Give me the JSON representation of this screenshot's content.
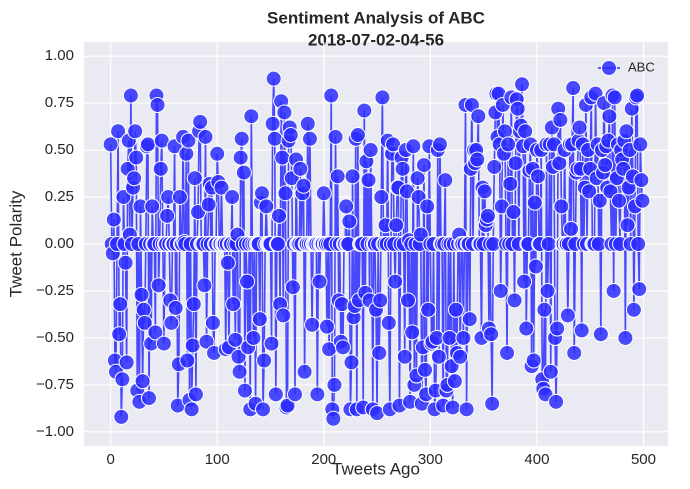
{
  "chart_data": {
    "type": "line",
    "title": "Sentiment Analysis of ABC",
    "subtitle": "2018-07-02-04-56",
    "x_label": "Tweets Ago",
    "y_label": "Tweet Polarity",
    "xlim": [
      -25,
      523
    ],
    "ylim": [
      -1.075,
      1.075
    ],
    "xticks": [
      0,
      100,
      200,
      300,
      400,
      500
    ],
    "yticks": [
      {
        "value": -1,
        "label": "−1.00"
      },
      {
        "value": -0.75,
        "label": "−0.75"
      },
      {
        "value": -0.5,
        "label": "−0.50"
      },
      {
        "value": -0.25,
        "label": "−0.25"
      },
      {
        "value": 0,
        "label": "0.00"
      },
      {
        "value": 0.25,
        "label": "0.25"
      },
      {
        "value": 0.5,
        "label": "0.50"
      },
      {
        "value": 0.75,
        "label": "0.75"
      },
      {
        "value": 1,
        "label": "1.00"
      }
    ],
    "grid": true,
    "legend": "upper right",
    "x": [
      0,
      1,
      2,
      3,
      4,
      5,
      6,
      7,
      8,
      9,
      10,
      11,
      12,
      13,
      14,
      15,
      16,
      17,
      18,
      19,
      20,
      21,
      22,
      23,
      24,
      25,
      26,
      27,
      28,
      29,
      30,
      31,
      32,
      33,
      34,
      35,
      36,
      37,
      38,
      39,
      40,
      41,
      42,
      43,
      44,
      45,
      46,
      47,
      48,
      49,
      50,
      51,
      52,
      53,
      54,
      55,
      56,
      57,
      58,
      59,
      60,
      61,
      62,
      63,
      64,
      65,
      66,
      67,
      68,
      69,
      70,
      71,
      72,
      73,
      74,
      75,
      76,
      77,
      78,
      79,
      80,
      81,
      82,
      83,
      84,
      85,
      86,
      87,
      88,
      89,
      90,
      91,
      92,
      93,
      94,
      95,
      96,
      97,
      98,
      99,
      100,
      101,
      102,
      103,
      104,
      105,
      106,
      107,
      108,
      109,
      110,
      111,
      112,
      113,
      114,
      115,
      116,
      117,
      118,
      119,
      120,
      121,
      122,
      123,
      124,
      125,
      126,
      127,
      128,
      129,
      130,
      131,
      132,
      133,
      134,
      135,
      136,
      137,
      138,
      139,
      140,
      141,
      142,
      143,
      144,
      145,
      146,
      147,
      148,
      149,
      150,
      151,
      152,
      153,
      154,
      155,
      156,
      157,
      158,
      159,
      160,
      161,
      162,
      163,
      164,
      165,
      166,
      167,
      168,
      169,
      170,
      171,
      172,
      173,
      174,
      175,
      176,
      177,
      178,
      179,
      180,
      181,
      182,
      183,
      184,
      185,
      186,
      187,
      188,
      189,
      190,
      191,
      192,
      193,
      194,
      195,
      196,
      197,
      198,
      199,
      200,
      201,
      202,
      203,
      204,
      205,
      206,
      207,
      208,
      209,
      210,
      211,
      212,
      213,
      214,
      215,
      216,
      217,
      218,
      219,
      220,
      221,
      222,
      223,
      224,
      225,
      226,
      227,
      228,
      229,
      230,
      231,
      232,
      233,
      234,
      235,
      236,
      237,
      238,
      239,
      240,
      241,
      242,
      243,
      244,
      245,
      246,
      247,
      248,
      249,
      250,
      251,
      252,
      253,
      254,
      255,
      256,
      257,
      258,
      259,
      260,
      261,
      262,
      263,
      264,
      265,
      266,
      267,
      268,
      269,
      270,
      271,
      272,
      273,
      274,
      275,
      276,
      277,
      278,
      279,
      280,
      281,
      282,
      283,
      284,
      285,
      286,
      287,
      288,
      289,
      290,
      291,
      292,
      293,
      294,
      295,
      296,
      297,
      298,
      299,
      300,
      301,
      302,
      303,
      304,
      305,
      306,
      307,
      308,
      309,
      310,
      311,
      312,
      313,
      314,
      315,
      316,
      317,
      318,
      319,
      320,
      321,
      322,
      323,
      324,
      325,
      326,
      327,
      328,
      329,
      330,
      331,
      332,
      333,
      334,
      335,
      336,
      337,
      338,
      339,
      340,
      341,
      342,
      343,
      344,
      345,
      346,
      347,
      348,
      349,
      350,
      351,
      352,
      353,
      354,
      355,
      356,
      357,
      358,
      359,
      360,
      361,
      362,
      363,
      364,
      365,
      366,
      367,
      368,
      369,
      370,
      371,
      372,
      373,
      374,
      375,
      376,
      377,
      378,
      379,
      380,
      381,
      382,
      383,
      384,
      385,
      386,
      387,
      388,
      389,
      390,
      391,
      392,
      393,
      394,
      395,
      396,
      397,
      398,
      399,
      400,
      401,
      402,
      403,
      404,
      405,
      406,
      407,
      408,
      409,
      410,
      411,
      412,
      413,
      414,
      415,
      416,
      417,
      418,
      419,
      420,
      421,
      422,
      423,
      424,
      425,
      426,
      427,
      428,
      429,
      430,
      431,
      432,
      433,
      434,
      435,
      436,
      437,
      438,
      439,
      440,
      441,
      442,
      443,
      444,
      445,
      446,
      447,
      448,
      449,
      450,
      451,
      452,
      453,
      454,
      455,
      456,
      457,
      458,
      459,
      460,
      461,
      462,
      463,
      464,
      465,
      466,
      467,
      468,
      469,
      470,
      471,
      472,
      473,
      474,
      475,
      476,
      477,
      478,
      479,
      480,
      481,
      482,
      483,
      484,
      485,
      486,
      487,
      488,
      489,
      490,
      491,
      492,
      493,
      494,
      495,
      496,
      497,
      498,
      499
    ],
    "series": [
      {
        "name": "ABC",
        "color": "#2b2bff",
        "values": [
          0.53,
          0,
          -0.05,
          0.13,
          -0.62,
          -0.68,
          0,
          0.6,
          -0.48,
          -0.32,
          -0.92,
          -0.72,
          0.25,
          0,
          -0.1,
          -0.63,
          0.4,
          0.55,
          0.05,
          0.79,
          0,
          0.3,
          0.35,
          0.6,
          0.46,
          -0.78,
          0,
          -0.84,
          0.2,
          -0.27,
          -0.73,
          -0.35,
          -0.42,
          0,
          0.52,
          0.53,
          -0.82,
          0,
          -0.53,
          0.2,
          0,
          0,
          -0.47,
          0.79,
          0.74,
          -0.22,
          0,
          0.4,
          0.55,
          0,
          -0.53,
          0,
          0,
          0.15,
          0.25,
          0,
          -0.3,
          -0.42,
          0,
          0,
          0.52,
          -0.34,
          0,
          -0.86,
          -0.64,
          0.25,
          0,
          0,
          0.57,
          0.01,
          0,
          0.48,
          -0.62,
          0.55,
          -0.83,
          0,
          -0.88,
          -0.54,
          -0.32,
          0.35,
          -0.8,
          0,
          0.17,
          0.6,
          0.65,
          0,
          0,
          0,
          -0.22,
          0.57,
          -0.52,
          0,
          0.21,
          0.32,
          0,
          0.3,
          -0.42,
          -0.58,
          0,
          0,
          0.48,
          0.33,
          0,
          0,
          0.3,
          0,
          0,
          0,
          -0.56,
          0,
          -0.1,
          -0.55,
          0,
          0,
          0.25,
          -0.32,
          0,
          -0.51,
          0,
          0.05,
          -0.6,
          -0.68,
          0.46,
          0.56,
          0,
          0.38,
          -0.78,
          0,
          -0.2,
          -0.55,
          0,
          -0.88,
          0.68,
          0,
          -0.5,
          0,
          -0.85,
          0,
          0,
          0,
          -0.4,
          0.22,
          0.27,
          -0.88,
          -0.62,
          0,
          0.2,
          0,
          0,
          0,
          0,
          -0.53,
          0.64,
          0.88,
          0.56,
          -0.8,
          0,
          0,
          0.15,
          -0.32,
          0.76,
          0.46,
          -0.38,
          0.7,
          0.27,
          -0.87,
          -0.86,
          0.55,
          0.62,
          0.58,
          0.35,
          -0.23,
          0,
          -0.8,
          0.45,
          0,
          0,
          0,
          0.4,
          0,
          0.27,
          0.31,
          -0.68,
          0,
          0,
          0.64,
          0,
          0.56,
          0,
          -0.43,
          0,
          0,
          0,
          0,
          -0.8,
          0,
          -0.2,
          0,
          0,
          0,
          0.27,
          0,
          0,
          -0.44,
          0,
          -0.56,
          0,
          0.79,
          -0.88,
          -0.93,
          -0.75,
          0.57,
          0,
          0.36,
          -0.3,
          0,
          -0.52,
          -0.32,
          -0.55,
          0,
          0,
          0.2,
          0,
          0,
          0.12,
          -0.88,
          -0.63,
          0.36,
          -0.39,
          -0.33,
          0.56,
          -0.88,
          0.58,
          -0.3,
          0,
          0,
          0,
          -0.87,
          0.71,
          -0.26,
          0.44,
          0,
          0.34,
          -0.3,
          0.5,
          0,
          -0.88,
          0,
          0,
          -0.35,
          -0.9,
          0,
          -0.58,
          -0.3,
          0.25,
          0.78,
          0,
          0,
          0.1,
          0,
          0.55,
          -0.42,
          -0.88,
          0,
          0.48,
          0.53,
          0,
          -0.2,
          0.1,
          0.3,
          0.3,
          -0.86,
          0,
          0.46,
          0.4,
          0,
          -0.6,
          0.5,
          0.28,
          -0.3,
          0.02,
          -0.84,
          0,
          -0.47,
          0.52,
          -0.75,
          0,
          -0.7,
          0.35,
          0.25,
          0,
          0.05,
          -0.85,
          -0.55,
          0.42,
          -0.67,
          -0.8,
          0.2,
          -0.35,
          0.52,
          0,
          -0.53,
          -0.52,
          0,
          -0.88,
          -0.78,
          -0.5,
          0.5,
          -0.6,
          0.53,
          0,
          0,
          -0.86,
          0,
          0.34,
          -0.78,
          -0.75,
          0,
          -0.5,
          0,
          -0.65,
          -0.87,
          0,
          -0.73,
          -0.35,
          -0.58,
          0,
          0.05,
          -0.6,
          0,
          0,
          -0.5,
          0,
          0.74,
          -0.88,
          0,
          0,
          -0.4,
          0.4,
          0.74,
          0,
          0.5,
          0.43,
          0.5,
          0.45,
          0.68,
          0,
          0,
          -0.5,
          0.3,
          0,
          0.28,
          0.1,
          0.13,
          0.15,
          -0.45,
          0,
          -0.48,
          -0.85,
          0,
          0.41,
          0.7,
          0.8,
          0.57,
          0.8,
          0.53,
          -0.25,
          0.2,
          0.74,
          0.48,
          0.6,
          0,
          -0.58,
          0.53,
          0,
          0.32,
          0.78,
          0,
          0.17,
          -0.3,
          0.43,
          0.77,
          0.72,
          0,
          0.6,
          0.63,
          0.85,
          0.52,
          -0.2,
          0.6,
          -0.45,
          0,
          0,
          0.39,
          0.53,
          -0.65,
          0.4,
          -0.62,
          0.22,
          -0.12,
          0.5,
          0.36,
          0,
          0,
          0.5,
          -0.72,
          -0.77,
          -0.35,
          -0.8,
          0.53,
          -0.25,
          0,
          0.53,
          -0.68,
          0.62,
          0.41,
          0.53,
          -0.5,
          -0.84,
          -0.45,
          0.72,
          0.43,
          0.66,
          0.2,
          0,
          0,
          0.5,
          0,
          0,
          -0.38,
          0,
          0.53,
          0.08,
          0.53,
          0.83,
          -0.58,
          0,
          0.38,
          0.4,
          0.55,
          0.62,
          0.4,
          -0.46,
          0.53,
          0,
          0.3,
          0.74,
          0,
          0.5,
          0.28,
          0.4,
          0.78,
          0,
          0,
          0,
          0.8,
          0.35,
          0.53,
          0,
          0.23,
          -0.48,
          0.5,
          0.38,
          0.75,
          0.42,
          0.52,
          0.3,
          0.55,
          0.68,
          0.28,
          0,
          0.79,
          -0.25,
          0.78,
          0,
          0.35,
          0.53,
          0.23,
          0,
          0.5,
          0.45,
          0.4,
          0.55,
          -0.5,
          0.6,
          0.1,
          0.3,
          0.5,
          0,
          0.72,
          0.36,
          -0.35,
          0.2,
          0.78,
          0.79,
          0,
          -0.24,
          0.53,
          0.34,
          0.23
        ]
      }
    ]
  }
}
